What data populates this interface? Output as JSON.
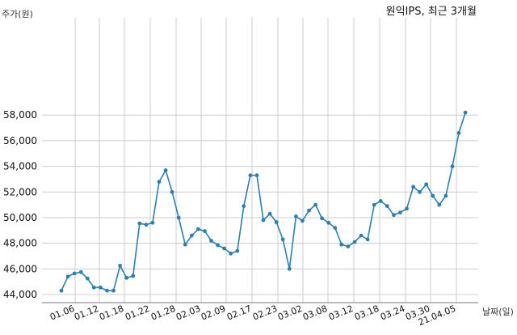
{
  "chart_data": {
    "type": "line",
    "title": "원익IPS, 최근 3개월",
    "ylabel": "주가(원)",
    "xlabel": "날짜(일)",
    "ylim": [
      44000,
      59000
    ],
    "y_ticks": [
      "44,000",
      "46,000",
      "48,000",
      "50,000",
      "52,000",
      "54,000",
      "56,000",
      "58,000"
    ],
    "x_ticks": [
      "01.06",
      "01.12",
      "01.18",
      "01.22",
      "01.28",
      "02.03",
      "02.09",
      "02.17",
      "02.23",
      "03.02",
      "03.08",
      "03.12",
      "03.18",
      "03.24",
      "03.30",
      "21.04.05"
    ],
    "grid": true,
    "line_color": "#2e7fb0",
    "series": [
      {
        "values": [
          44300,
          45400,
          45650,
          45750,
          45250,
          44550,
          44550,
          44300,
          44300,
          46250,
          45300,
          45450,
          49550,
          49450,
          49600,
          52800,
          53700,
          52000,
          50000,
          47900,
          48600,
          49100,
          48950,
          48200,
          47850,
          47600,
          47200,
          47400,
          50900,
          53300,
          53300,
          49800,
          50300,
          49650,
          48300,
          46000,
          50100,
          49750,
          50550,
          51000,
          49950,
          49600,
          49200,
          47900,
          47750,
          48100,
          48600,
          48300,
          51000,
          51300,
          50900,
          50200,
          50400,
          50700,
          52400,
          52000,
          52600,
          51700,
          51000,
          51700,
          54000,
          56600,
          58200
        ]
      }
    ]
  }
}
